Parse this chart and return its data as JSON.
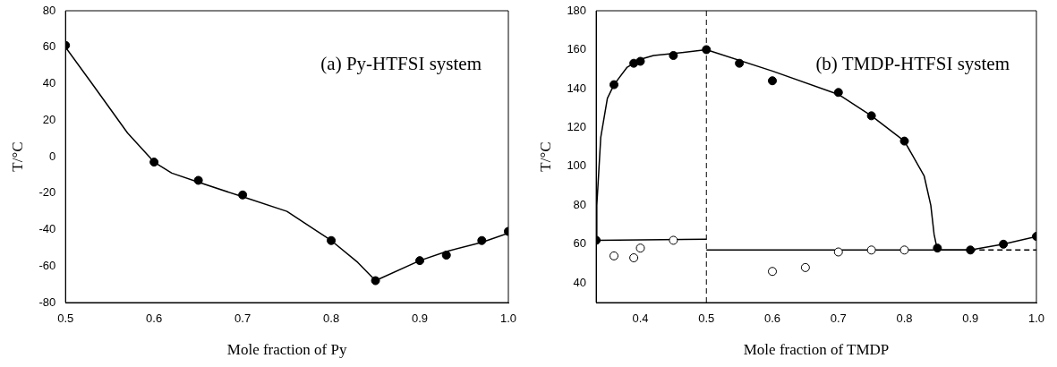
{
  "chart_data": [
    {
      "type": "scatter",
      "xlabel": "Mole fraction of Py",
      "ylabel": "T/°C",
      "annotations": [
        "(a) Py-HTFSI system"
      ],
      "grid": false,
      "legend": false,
      "xlim": [
        0.5,
        1.0
      ],
      "xticks": [
        0.5,
        0.6,
        0.7,
        0.8,
        0.9,
        {
          "value": 1.0,
          "label": "1.0"
        }
      ],
      "ylim": [
        -80,
        80
      ],
      "yticks": [
        -80,
        -60,
        -40,
        -20,
        0,
        20,
        40,
        60,
        80
      ],
      "series": [
        {
          "type": "line",
          "color": "#000000",
          "marker": "none",
          "line_style": "solid",
          "x": [
            0.5,
            0.53,
            0.57,
            0.6,
            0.62,
            0.65,
            0.7,
            0.75,
            0.8,
            0.83,
            0.85,
            0.9,
            0.93,
            0.97,
            1.0
          ],
          "values": [
            60,
            40,
            13,
            -3,
            -9,
            -14,
            -22,
            -30,
            -46,
            -58,
            -68,
            -57,
            -52,
            -47,
            -42
          ]
        },
        {
          "type": "scatter",
          "color": "#000000",
          "marker": "circle",
          "x": [
            0.5,
            0.6,
            0.65,
            0.7,
            0.8,
            0.85,
            0.9,
            0.93,
            0.97,
            1.0
          ],
          "values": [
            61,
            -3,
            -13,
            -21,
            -46,
            -68,
            -57,
            -54,
            -46,
            -41
          ]
        }
      ]
    },
    {
      "type": "scatter",
      "xlabel": "Mole fraction of TMDP",
      "ylabel": "T/°C",
      "annotations": [
        "(b) TMDP-HTFSI system"
      ],
      "grid": false,
      "legend": false,
      "xlim": [
        0.333,
        1.0
      ],
      "xticks": [
        0.4,
        0.5,
        0.6,
        0.7,
        0.8,
        0.9,
        {
          "value": 1.0,
          "label": "1.0"
        }
      ],
      "ylim": [
        30,
        180
      ],
      "yticks": [
        40,
        60,
        80,
        100,
        120,
        140,
        160,
        180
      ],
      "ref_lines": [
        {
          "axis": "x",
          "value": 0.5,
          "line_style": "dashed",
          "color": "#000000"
        }
      ],
      "series": [
        {
          "type": "line",
          "color": "#000000",
          "marker": "none",
          "line_style": "solid",
          "x": [
            0.333,
            0.334,
            0.34,
            0.35,
            0.36,
            0.38,
            0.4,
            0.42,
            0.45,
            0.5
          ],
          "values": [
            62,
            80,
            115,
            135,
            142,
            151,
            155,
            157,
            158,
            160
          ]
        },
        {
          "type": "line",
          "color": "#000000",
          "marker": "none",
          "line_style": "solid",
          "x": [
            0.5,
            0.6,
            0.7,
            0.75,
            0.8,
            0.83,
            0.84,
            0.845,
            0.85,
            0.9,
            0.95,
            1.0
          ],
          "values": [
            160,
            149,
            137,
            126,
            113,
            95,
            80,
            65,
            57,
            57,
            60,
            64
          ]
        },
        {
          "type": "line",
          "color": "#000000",
          "marker": "none",
          "line_style": "solid",
          "x": [
            0.333,
            0.5
          ],
          "values": [
            62,
            62.5
          ]
        },
        {
          "type": "line",
          "color": "#000000",
          "marker": "none",
          "line_style": "solid",
          "x": [
            0.5,
            0.9
          ],
          "values": [
            57,
            57
          ]
        },
        {
          "type": "line",
          "color": "#000000",
          "marker": "none",
          "line_style": "dashed",
          "x": [
            0.9,
            1.0
          ],
          "values": [
            57,
            57
          ]
        },
        {
          "type": "scatter",
          "color": "#000000",
          "marker": "circle",
          "x": [
            0.333,
            0.36,
            0.39,
            0.4,
            0.45,
            0.5,
            0.55,
            0.6,
            0.7,
            0.75,
            0.8,
            0.85,
            0.9,
            0.95,
            1.0
          ],
          "values": [
            62,
            142,
            153,
            154,
            157,
            160,
            153,
            144,
            138,
            126,
            113,
            58,
            57,
            60,
            64
          ]
        },
        {
          "type": "scatter",
          "color": "#ffffff",
          "marker": "circle",
          "x": [
            0.36,
            0.39,
            0.4,
            0.45,
            0.6,
            0.65,
            0.7,
            0.75,
            0.8
          ],
          "values": [
            54,
            53,
            58,
            62,
            46,
            48,
            56,
            57,
            57
          ]
        }
      ]
    }
  ]
}
